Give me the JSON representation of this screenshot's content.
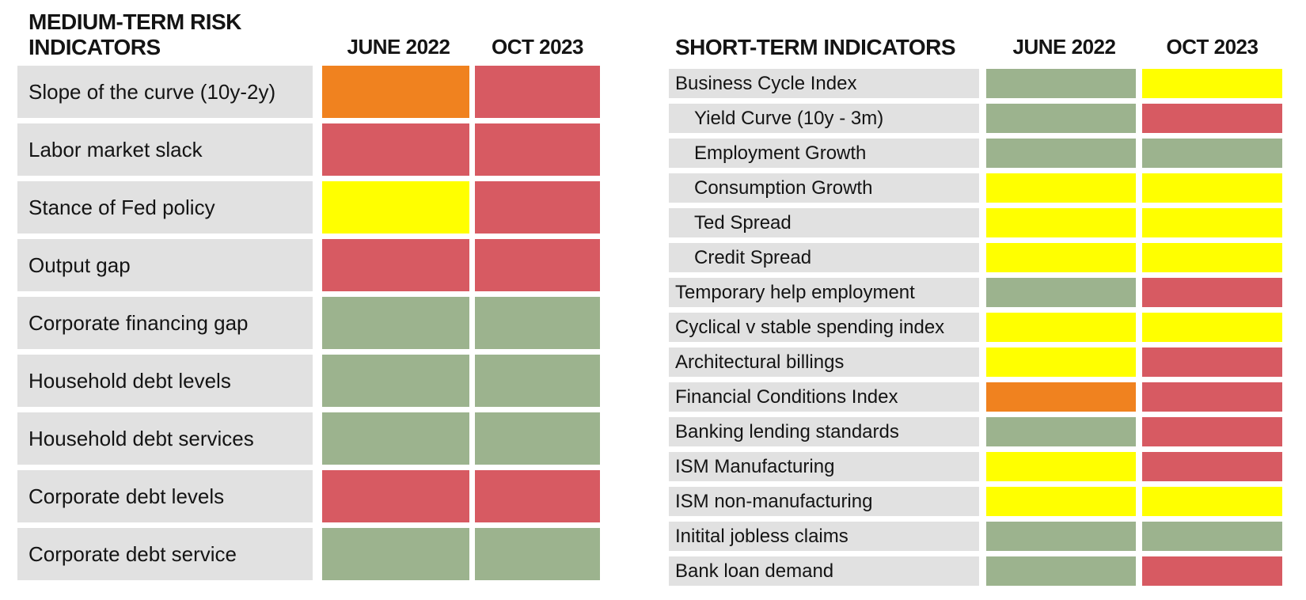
{
  "colors": {
    "green": "#9CB38E",
    "yellow": "#FFFF00",
    "orange": "#F0821F",
    "red": "#D75A62",
    "row_label_bg": "#E1E1E1",
    "text": "#141414",
    "background": "#FFFFFF"
  },
  "chart_data": [
    {
      "type": "heatmap",
      "title": "MEDIUM-TERM RISK INDICATORS",
      "columns": [
        "JUNE 2022",
        "OCT 2023"
      ],
      "legend_position": "none",
      "rows": [
        {
          "label": "Slope of the curve (10y-2y)",
          "indent": false,
          "values": [
            "orange",
            "red"
          ]
        },
        {
          "label": "Labor market slack",
          "indent": false,
          "values": [
            "red",
            "red"
          ]
        },
        {
          "label": "Stance of Fed policy",
          "indent": false,
          "values": [
            "yellow",
            "red"
          ]
        },
        {
          "label": "Output gap",
          "indent": false,
          "values": [
            "red",
            "red"
          ]
        },
        {
          "label": "Corporate financing gap",
          "indent": false,
          "values": [
            "green",
            "green"
          ]
        },
        {
          "label": "Household debt levels",
          "indent": false,
          "values": [
            "green",
            "green"
          ]
        },
        {
          "label": "Household debt services",
          "indent": false,
          "values": [
            "green",
            "green"
          ]
        },
        {
          "label": "Corporate debt levels",
          "indent": false,
          "values": [
            "red",
            "red"
          ]
        },
        {
          "label": "Corporate debt service",
          "indent": false,
          "values": [
            "green",
            "green"
          ]
        }
      ]
    },
    {
      "type": "heatmap",
      "title": "SHORT-TERM INDICATORS",
      "columns": [
        "JUNE 2022",
        "OCT 2023"
      ],
      "legend_position": "none",
      "rows": [
        {
          "label": "Business Cycle Index",
          "indent": false,
          "values": [
            "green",
            "yellow"
          ]
        },
        {
          "label": "Yield Curve (10y - 3m)",
          "indent": true,
          "values": [
            "green",
            "red"
          ]
        },
        {
          "label": "Employment Growth",
          "indent": true,
          "values": [
            "green",
            "green"
          ]
        },
        {
          "label": "Consumption Growth",
          "indent": true,
          "values": [
            "yellow",
            "yellow"
          ]
        },
        {
          "label": "Ted Spread",
          "indent": true,
          "values": [
            "yellow",
            "yellow"
          ]
        },
        {
          "label": "Credit Spread",
          "indent": true,
          "values": [
            "yellow",
            "yellow"
          ]
        },
        {
          "label": "Temporary help employment",
          "indent": false,
          "values": [
            "green",
            "red"
          ]
        },
        {
          "label": "Cyclical v stable spending index",
          "indent": false,
          "values": [
            "yellow",
            "yellow"
          ]
        },
        {
          "label": "Architectural billings",
          "indent": false,
          "values": [
            "yellow",
            "red"
          ]
        },
        {
          "label": "Financial Conditions Index",
          "indent": false,
          "values": [
            "orange",
            "red"
          ]
        },
        {
          "label": "Banking lending standards",
          "indent": false,
          "values": [
            "green",
            "red"
          ]
        },
        {
          "label": "ISM Manufacturing",
          "indent": false,
          "values": [
            "yellow",
            "red"
          ]
        },
        {
          "label": "ISM non-manufacturing",
          "indent": false,
          "values": [
            "yellow",
            "yellow"
          ]
        },
        {
          "label": "Initital jobless claims",
          "indent": false,
          "values": [
            "green",
            "green"
          ]
        },
        {
          "label": "Bank loan demand",
          "indent": false,
          "values": [
            "green",
            "red"
          ]
        }
      ]
    }
  ]
}
